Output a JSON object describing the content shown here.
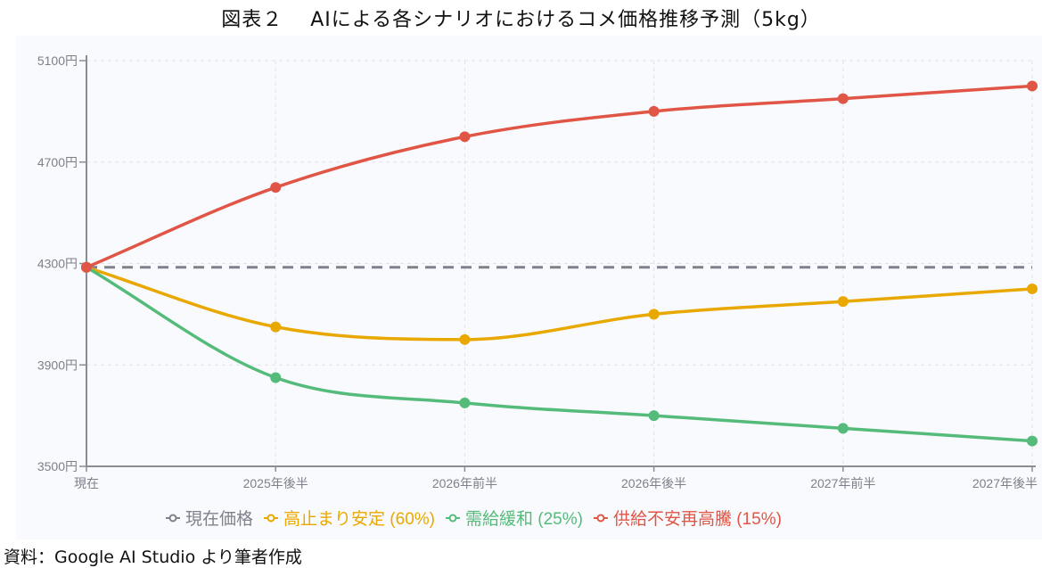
{
  "chart_data": {
    "type": "line",
    "title": "図表２　 AIによる各シナリオにおけるコメ価格推移予測（5kg）",
    "source": "資料：Google  AI  Studio より筆者作成",
    "categories": [
      "現在",
      "2025年後半",
      "2026年前半",
      "2026年後半",
      "2027年前半",
      "2027年後半"
    ],
    "ylim": [
      3500,
      5100
    ],
    "yticks": [
      3500,
      3900,
      4300,
      4700,
      5100
    ],
    "ytick_suffix": "円",
    "ytick_labels": [
      "3500円",
      "3900円",
      "4300円",
      "4700円",
      "5100円"
    ],
    "grid": true,
    "legend_position": "bottom",
    "series": [
      {
        "name": "現在価格",
        "color": "#7f818c",
        "dashed": true,
        "values": [
          4285,
          4285,
          4285,
          4285,
          4285,
          4285
        ],
        "markers": false
      },
      {
        "name": "高止まり安定 (60%)",
        "color": "#e9a800",
        "values": [
          4285,
          4050,
          4000,
          4100,
          4150,
          4200
        ],
        "markers": true
      },
      {
        "name": "需給緩和 (25%)",
        "color": "#55bb7a",
        "values": [
          4285,
          3850,
          3750,
          3700,
          3650,
          3600
        ],
        "markers": true
      },
      {
        "name": "供給不安再高騰 (15%)",
        "color": "#e05545",
        "values": [
          4285,
          4600,
          4800,
          4900,
          4950,
          5000
        ],
        "markers": true
      }
    ]
  }
}
